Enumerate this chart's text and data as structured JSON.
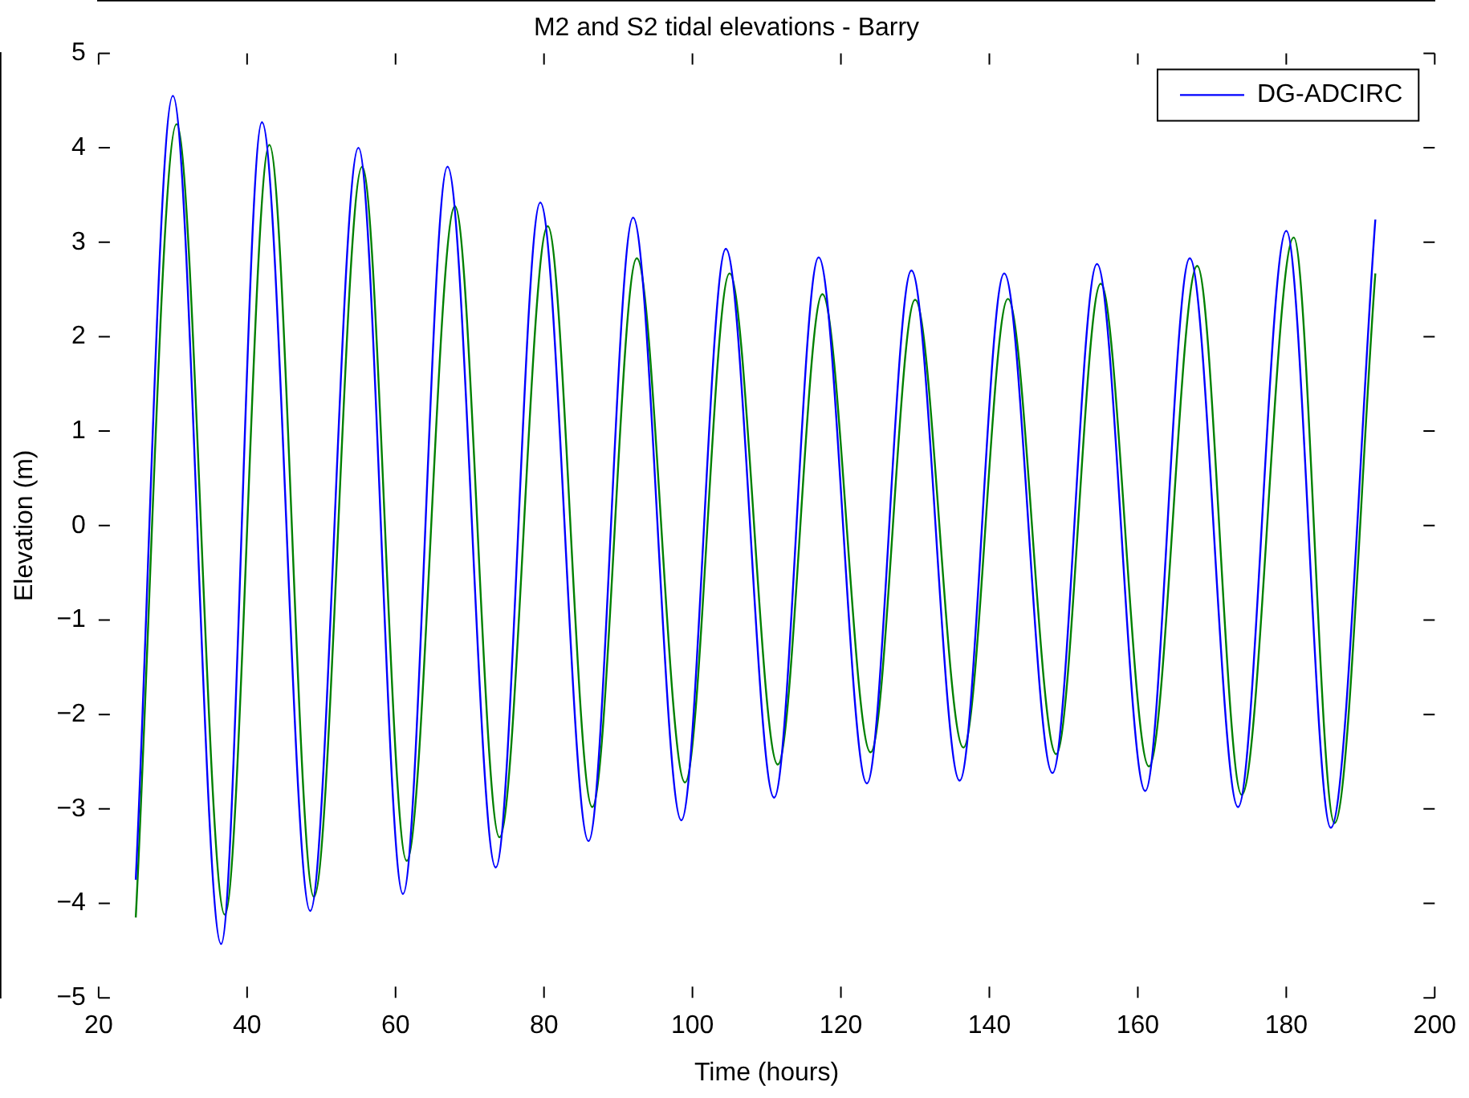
{
  "chart_data": {
    "type": "line",
    "title": "M2 and S2 tidal elevations - Barry",
    "xlabel": "Time (hours)",
    "ylabel": "Elevation (m)",
    "xlim": [
      20,
      200
    ],
    "xticks": [
      20,
      40,
      60,
      80,
      100,
      120,
      140,
      160,
      180,
      200
    ],
    "ylim": [
      -5,
      5
    ],
    "yticks": [
      -5,
      -4,
      -3,
      -2,
      -1,
      0,
      1,
      2,
      3,
      4,
      5
    ],
    "grid": false,
    "legend": "top right",
    "marker": "none",
    "line_style": "solid",
    "series": [
      {
        "name": "DG-ADCIRC",
        "color": "#0000ff",
        "x": [
          25,
          30,
          36.5,
          42,
          48.5,
          55,
          61,
          67,
          73.5,
          79.5,
          86,
          92,
          98.5,
          104.5,
          111,
          117,
          123.5,
          129.5,
          136,
          142,
          148.5,
          154.5,
          161,
          167,
          173.5,
          180,
          186,
          192
        ],
        "values": [
          -3.75,
          4.55,
          -4.43,
          4.27,
          -4.08,
          4.0,
          -3.9,
          3.8,
          -3.62,
          3.42,
          -3.34,
          3.26,
          -3.12,
          2.93,
          -2.88,
          2.84,
          -2.73,
          2.7,
          -2.7,
          2.67,
          -2.62,
          2.77,
          -2.81,
          2.83,
          -2.98,
          3.12,
          -3.2,
          3.24
        ]
      },
      {
        "color": "#008000",
        "x": [
          25,
          30.5,
          37,
          43,
          49,
          55.5,
          61.5,
          68,
          74,
          80.5,
          86.5,
          92.5,
          99,
          105,
          111.5,
          117.5,
          124,
          130,
          136.5,
          142.5,
          149,
          155,
          161.5,
          168,
          174,
          181,
          186.5,
          192
        ],
        "values": [
          -4.15,
          4.25,
          -4.12,
          4.03,
          -3.93,
          3.8,
          -3.55,
          3.38,
          -3.3,
          3.17,
          -2.98,
          2.83,
          -2.72,
          2.67,
          -2.53,
          2.45,
          -2.4,
          2.39,
          -2.35,
          2.4,
          -2.42,
          2.56,
          -2.55,
          2.75,
          -2.85,
          3.05,
          -3.15,
          2.67
        ]
      }
    ]
  }
}
